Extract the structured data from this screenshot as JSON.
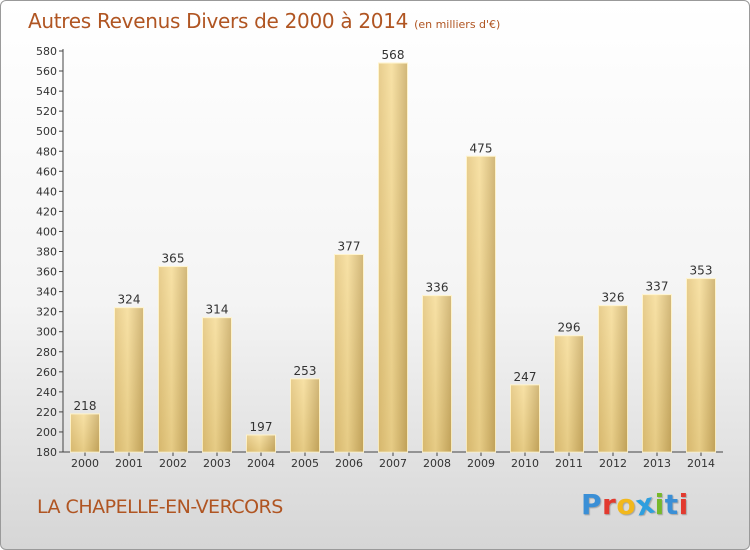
{
  "header": {
    "title": "Autres Revenus Divers de 2000 à 2014",
    "unit": "(en milliers d'€)"
  },
  "footer": {
    "commune": "LA CHAPELLE-EN-VERCORS",
    "logo_letters": [
      "P",
      "r",
      "o",
      "x",
      "i",
      "t",
      "i"
    ],
    "logo_colors": [
      "#3a8fd6",
      "#e23a2f",
      "#f2b81c",
      "#2f9fde",
      "#77b82a",
      "#3a8fd6",
      "#e23a2f"
    ]
  },
  "colors": {
    "title": "#b05522",
    "bar_light": "#f7df9a",
    "bar_dark": "#c8a95c",
    "axis": "#333333"
  },
  "chart_data": {
    "type": "bar",
    "categories": [
      "2000",
      "2001",
      "2002",
      "2003",
      "2004",
      "2005",
      "2006",
      "2007",
      "2008",
      "2009",
      "2010",
      "2011",
      "2012",
      "2013",
      "2014"
    ],
    "values": [
      218,
      324,
      365,
      314,
      197,
      253,
      377,
      568,
      336,
      475,
      247,
      296,
      326,
      337,
      353
    ],
    "ylim": [
      180,
      580
    ],
    "ytick_step": 20,
    "grid": false
  }
}
